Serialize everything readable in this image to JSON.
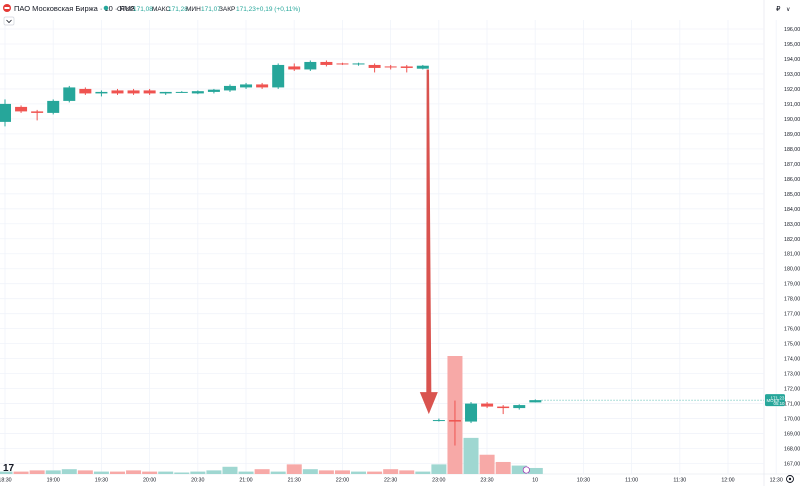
{
  "header": {
    "symbol_title": "ПАО Московская Биржа · 10 · RUS",
    "ohlc": [
      {
        "label": "ОТКР",
        "value": "171,08"
      },
      {
        "label": "МАКС",
        "value": "171,28"
      },
      {
        "label": "МИН",
        "value": "171,07"
      },
      {
        "label": "ЗАКР",
        "value": "171,23"
      }
    ],
    "change": "+0,19 (+0,11%)"
  },
  "topbar": {
    "currency": "₽",
    "dropdown": "∨"
  },
  "price_tag": {
    "ticker": "MOEX",
    "price": "171,23",
    "countdown": "05:10"
  },
  "branding": {
    "logo_text": "17"
  },
  "colors": {
    "up": "#26a69a",
    "down": "#ef5350",
    "vol_up": "#9fd7d1",
    "vol_down": "#f7a9a7",
    "arrow": "#d9534f",
    "grid": "#f0f3fa",
    "axis_text": "#131722"
  },
  "chart_data": {
    "type": "candlestick",
    "timeframe": "10",
    "x_ticks": [
      "18:30",
      "19:00",
      "19:30",
      "20:00",
      "20:30",
      "21:00",
      "21:30",
      "22:00",
      "22:30",
      "23:00",
      "23:30",
      "10",
      "10:30",
      "11:00",
      "11:30",
      "12:00",
      "12:30"
    ],
    "y_ticks": [
      "167,00",
      "168,00",
      "169,00",
      "170,00",
      "171,00",
      "172,00",
      "173,00",
      "174,00",
      "175,00",
      "176,00",
      "177,00",
      "178,00",
      "179,00",
      "180,00",
      "181,00",
      "182,00",
      "183,00",
      "184,00",
      "185,00",
      "186,00",
      "187,00",
      "188,00",
      "189,00",
      "190,00",
      "191,00",
      "192,00",
      "193,00",
      "194,00",
      "195,00",
      "196,00"
    ],
    "ylim": [
      166.3,
      196.6
    ],
    "candles": [
      {
        "t": 0.0,
        "o": 189.8,
        "h": 191.3,
        "l": 189.5,
        "c": 191.0
      },
      {
        "t": 1.0,
        "o": 190.8,
        "h": 190.9,
        "l": 190.4,
        "c": 190.5
      },
      {
        "t": 2.0,
        "o": 190.5,
        "h": 190.6,
        "l": 189.9,
        "c": 190.4
      },
      {
        "t": 3.0,
        "o": 190.4,
        "h": 191.3,
        "l": 190.3,
        "c": 191.2
      },
      {
        "t": 4.0,
        "o": 191.2,
        "h": 192.2,
        "l": 191.1,
        "c": 192.1
      },
      {
        "t": 5.0,
        "o": 192.0,
        "h": 192.1,
        "l": 191.6,
        "c": 191.7
      },
      {
        "t": 6.0,
        "o": 191.7,
        "h": 191.9,
        "l": 191.5,
        "c": 191.8
      },
      {
        "t": 7.0,
        "o": 191.9,
        "h": 192.0,
        "l": 191.6,
        "c": 191.7
      },
      {
        "t": 8.0,
        "o": 191.9,
        "h": 192.0,
        "l": 191.6,
        "c": 191.7
      },
      {
        "t": 9.0,
        "o": 191.9,
        "h": 192.0,
        "l": 191.6,
        "c": 191.7
      },
      {
        "t": 10.0,
        "o": 191.7,
        "h": 191.8,
        "l": 191.6,
        "c": 191.8
      },
      {
        "t": 11.0,
        "o": 191.8,
        "h": 191.85,
        "l": 191.75,
        "c": 191.8
      },
      {
        "t": 12.0,
        "o": 191.7,
        "h": 191.9,
        "l": 191.65,
        "c": 191.85
      },
      {
        "t": 13.0,
        "o": 191.8,
        "h": 192.0,
        "l": 191.7,
        "c": 191.95
      },
      {
        "t": 14.0,
        "o": 191.9,
        "h": 192.3,
        "l": 191.8,
        "c": 192.2
      },
      {
        "t": 15.0,
        "o": 192.1,
        "h": 192.4,
        "l": 192.0,
        "c": 192.3
      },
      {
        "t": 16.0,
        "o": 192.3,
        "h": 192.4,
        "l": 192.0,
        "c": 192.1
      },
      {
        "t": 17.0,
        "o": 192.1,
        "h": 193.7,
        "l": 192.0,
        "c": 193.6
      },
      {
        "t": 18.0,
        "o": 193.5,
        "h": 193.7,
        "l": 193.2,
        "c": 193.3
      },
      {
        "t": 19.0,
        "o": 193.3,
        "h": 193.9,
        "l": 193.2,
        "c": 193.8
      },
      {
        "t": 20.0,
        "o": 193.8,
        "h": 193.9,
        "l": 193.5,
        "c": 193.6
      },
      {
        "t": 21.0,
        "o": 193.7,
        "h": 193.75,
        "l": 193.6,
        "c": 193.65
      },
      {
        "t": 22.0,
        "o": 193.65,
        "h": 193.75,
        "l": 193.55,
        "c": 193.7
      },
      {
        "t": 23.0,
        "o": 193.6,
        "h": 193.7,
        "l": 193.1,
        "c": 193.4
      },
      {
        "t": 24.0,
        "o": 193.5,
        "h": 193.6,
        "l": 193.3,
        "c": 193.45
      },
      {
        "t": 25.0,
        "o": 193.5,
        "h": 193.6,
        "l": 193.1,
        "c": 193.4
      },
      {
        "t": 26.0,
        "o": 193.35,
        "h": 193.6,
        "l": 193.3,
        "c": 193.55
      },
      {
        "t": 27.0,
        "o": 169.9,
        "h": 170.0,
        "l": 169.8,
        "c": 169.9
      },
      {
        "t": 28.0,
        "o": 169.9,
        "h": 171.2,
        "l": 168.2,
        "c": 169.8
      },
      {
        "t": 29.0,
        "o": 169.8,
        "h": 171.1,
        "l": 169.7,
        "c": 171.0
      },
      {
        "t": 30.0,
        "o": 171.0,
        "h": 171.1,
        "l": 170.7,
        "c": 170.8
      },
      {
        "t": 31.0,
        "o": 170.8,
        "h": 170.9,
        "l": 170.3,
        "c": 170.7
      },
      {
        "t": 32.0,
        "o": 170.7,
        "h": 170.95,
        "l": 170.6,
        "c": 170.9
      },
      {
        "t": 33.0,
        "o": 171.08,
        "h": 171.28,
        "l": 171.07,
        "c": 171.23
      }
    ],
    "volume": [
      2,
      2,
      3,
      3,
      4,
      3,
      2,
      2,
      3,
      2,
      2,
      1,
      2,
      3,
      6,
      2,
      4,
      2,
      8,
      4,
      3,
      3,
      2,
      2,
      4,
      3,
      2,
      8,
      98,
      30,
      16,
      10,
      7,
      5
    ]
  }
}
